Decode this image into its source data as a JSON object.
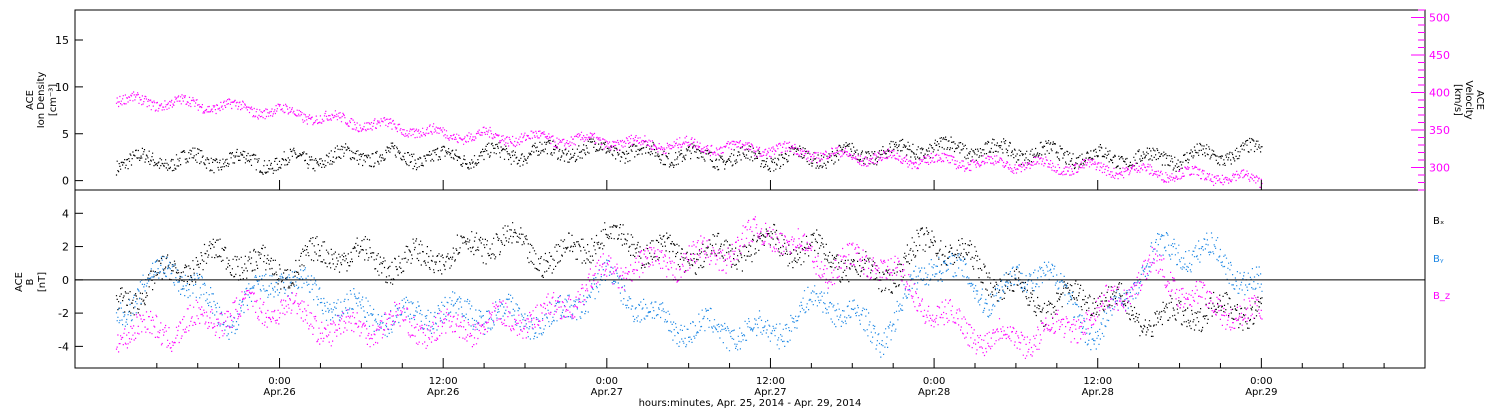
{
  "chart_data": [
    {
      "type": "scatter",
      "panel": "top",
      "left_axis": {
        "label_lines": [
          "ACE",
          "Ion Density",
          "[cm⁻³]"
        ],
        "ylim": [
          -1,
          18.2
        ],
        "ticks": [
          0,
          5,
          10,
          15
        ],
        "tick_labels": [
          "0",
          "5",
          "10",
          "15"
        ]
      },
      "right_axis": {
        "label_lines": [
          "ACE",
          "Velocity",
          "[km/s]"
        ],
        "ylim": [
          270,
          510
        ],
        "ticks": [
          300,
          350,
          400,
          450,
          500
        ],
        "tick_labels": [
          "300",
          "350",
          "400",
          "450",
          "500"
        ],
        "color": "#ff00ff"
      },
      "series": [
        {
          "axis": "left",
          "color": "#000000",
          "x_hours": [
            -12,
            -6,
            0,
            6,
            12,
            18,
            24,
            30,
            36,
            42,
            48,
            54,
            60,
            63,
            66,
            69,
            72
          ],
          "values": [
            2.1,
            2.3,
            2.0,
            2.8,
            2.5,
            3.0,
            3.4,
            2.7,
            2.4,
            2.8,
            3.6,
            3.2,
            2.6,
            2.4,
            2.5,
            2.8,
            3.3
          ]
        },
        {
          "axis": "right",
          "color": "#ff00ff",
          "x_hours": [
            -12,
            -6,
            0,
            6,
            12,
            18,
            24,
            30,
            36,
            42,
            48,
            54,
            60,
            63,
            66,
            69,
            72
          ],
          "values": [
            390,
            385,
            375,
            360,
            345,
            340,
            335,
            330,
            325,
            315,
            310,
            305,
            300,
            296,
            292,
            288,
            284
          ]
        }
      ]
    },
    {
      "type": "scatter",
      "panel": "bottom",
      "left_axis": {
        "label_lines": [
          "ACE",
          "B",
          "[nT]"
        ],
        "ylim": [
          -5.3,
          5.4
        ],
        "ticks": [
          -4,
          -2,
          0,
          2,
          4
        ],
        "tick_labels": [
          "-4",
          "-2",
          "0",
          "2",
          "4"
        ]
      },
      "legend": {
        "placement": "right",
        "entries": [
          "Bₓ",
          "Bᵧ",
          "B_z"
        ]
      },
      "series": [
        {
          "name": "Bₓ",
          "color": "#000000",
          "x_hours": [
            -12,
            -8,
            -4,
            0,
            4,
            8,
            12,
            16,
            20,
            24,
            28,
            32,
            36,
            40,
            44,
            48,
            52,
            56,
            60,
            64,
            68,
            72
          ],
          "values": [
            -1.5,
            0.5,
            1.5,
            0.5,
            1.8,
            1.0,
            1.5,
            2.5,
            1.2,
            2.8,
            1.6,
            1.5,
            2.3,
            1.6,
            0.0,
            2.5,
            0.3,
            -1.5,
            -0.8,
            -2.5,
            -1.8,
            -1.7
          ]
        },
        {
          "name": "Bᵧ",
          "color": "#1e88e5",
          "x_hours": [
            -12,
            -8,
            -4,
            0,
            4,
            8,
            12,
            16,
            20,
            24,
            28,
            32,
            36,
            40,
            44,
            48,
            52,
            56,
            60,
            64,
            68,
            72
          ],
          "values": [
            -2.0,
            1.0,
            -2.5,
            0.3,
            -1.5,
            -2.3,
            -1.8,
            -2.0,
            -2.5,
            0.2,
            -2.6,
            -3.0,
            -3.2,
            -1.0,
            -3.5,
            1.4,
            -1.0,
            0.8,
            -3.5,
            1.6,
            1.8,
            -0.6
          ]
        },
        {
          "name": "B_z",
          "color": "#ff00ff",
          "x_hours": [
            -12,
            -8,
            -4,
            0,
            4,
            8,
            12,
            16,
            20,
            24,
            28,
            32,
            36,
            40,
            44,
            48,
            52,
            56,
            60,
            64,
            68,
            72
          ],
          "values": [
            -3.0,
            -3.0,
            -2.0,
            -1.5,
            -3.0,
            -2.5,
            -3.0,
            -2.5,
            -2.0,
            0.5,
            1.0,
            1.5,
            3.0,
            0.8,
            1.2,
            -2.0,
            -3.5,
            -3.3,
            -2.0,
            0.8,
            -1.5,
            -2.3
          ]
        }
      ]
    }
  ],
  "x_axis": {
    "xlim_hours": [
      -15,
      84
    ],
    "ticks": [
      {
        "hour": 0,
        "time": "0:00",
        "date": "Apr.26"
      },
      {
        "hour": 12,
        "time": "12:00",
        "date": "Apr.26"
      },
      {
        "hour": 24,
        "time": "0:00",
        "date": "Apr.27"
      },
      {
        "hour": 36,
        "time": "12:00",
        "date": "Apr.27"
      },
      {
        "hour": 48,
        "time": "0:00",
        "date": "Apr.28"
      },
      {
        "hour": 60,
        "time": "12:00",
        "date": "Apr.28"
      },
      {
        "hour": 72,
        "time": "0:00",
        "date": "Apr.29"
      }
    ],
    "label": "hours:minutes, Apr. 25, 2014 - Apr. 29, 2014"
  }
}
